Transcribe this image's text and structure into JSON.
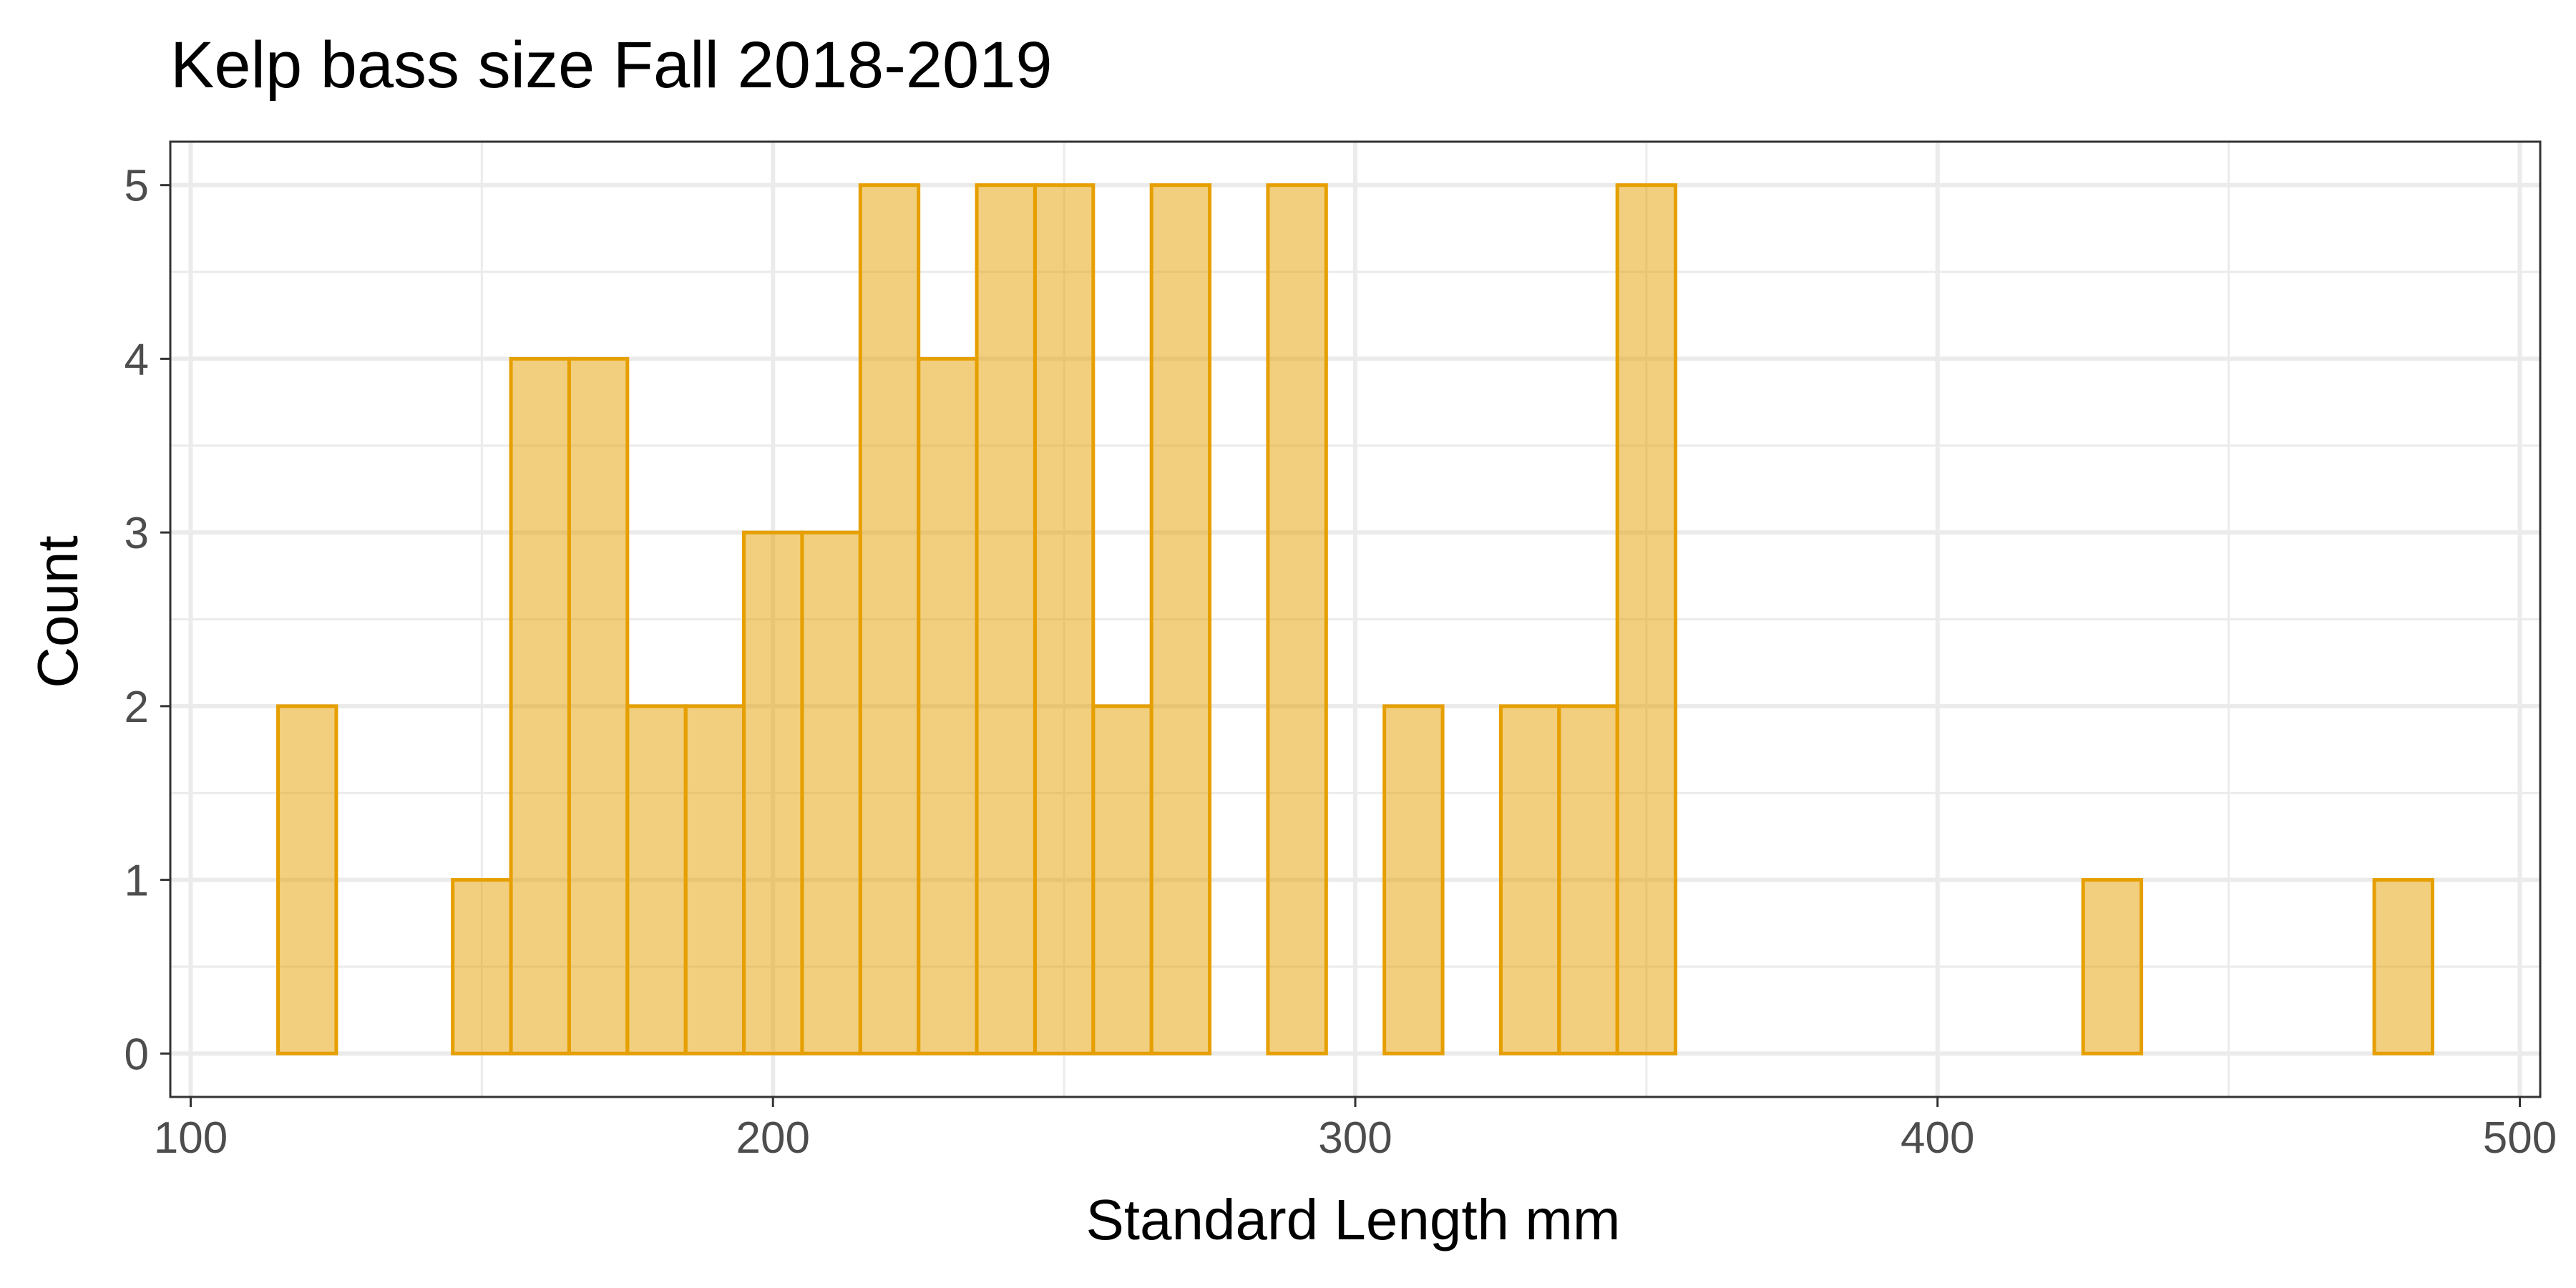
{
  "chart_data": {
    "type": "bar",
    "subtype": "histogram",
    "title": "Kelp bass size Fall 2018-2019",
    "xlabel": "Standard Length mm",
    "ylabel": "Count",
    "binwidth": 10,
    "bins": [
      {
        "x0": 115,
        "x1": 125,
        "count": 2
      },
      {
        "x0": 125,
        "x1": 135,
        "count": 0
      },
      {
        "x0": 135,
        "x1": 145,
        "count": 0
      },
      {
        "x0": 145,
        "x1": 155,
        "count": 1
      },
      {
        "x0": 155,
        "x1": 165,
        "count": 4
      },
      {
        "x0": 165,
        "x1": 175,
        "count": 4
      },
      {
        "x0": 175,
        "x1": 185,
        "count": 2
      },
      {
        "x0": 185,
        "x1": 195,
        "count": 2
      },
      {
        "x0": 195,
        "x1": 205,
        "count": 3
      },
      {
        "x0": 205,
        "x1": 215,
        "count": 3
      },
      {
        "x0": 215,
        "x1": 225,
        "count": 5
      },
      {
        "x0": 225,
        "x1": 235,
        "count": 4
      },
      {
        "x0": 235,
        "x1": 245,
        "count": 5
      },
      {
        "x0": 245,
        "x1": 255,
        "count": 5
      },
      {
        "x0": 255,
        "x1": 265,
        "count": 2
      },
      {
        "x0": 265,
        "x1": 275,
        "count": 5
      },
      {
        "x0": 275,
        "x1": 285,
        "count": 0
      },
      {
        "x0": 285,
        "x1": 295,
        "count": 5
      },
      {
        "x0": 295,
        "x1": 305,
        "count": 0
      },
      {
        "x0": 305,
        "x1": 315,
        "count": 2
      },
      {
        "x0": 315,
        "x1": 325,
        "count": 0
      },
      {
        "x0": 325,
        "x1": 335,
        "count": 2
      },
      {
        "x0": 335,
        "x1": 345,
        "count": 2
      },
      {
        "x0": 345,
        "x1": 355,
        "count": 5
      },
      {
        "x0": 355,
        "x1": 365,
        "count": 0
      },
      {
        "x0": 365,
        "x1": 375,
        "count": 0
      },
      {
        "x0": 375,
        "x1": 385,
        "count": 0
      },
      {
        "x0": 385,
        "x1": 395,
        "count": 0
      },
      {
        "x0": 395,
        "x1": 405,
        "count": 0
      },
      {
        "x0": 405,
        "x1": 415,
        "count": 0
      },
      {
        "x0": 415,
        "x1": 425,
        "count": 0
      },
      {
        "x0": 425,
        "x1": 435,
        "count": 1
      },
      {
        "x0": 435,
        "x1": 445,
        "count": 0
      },
      {
        "x0": 445,
        "x1": 455,
        "count": 0
      },
      {
        "x0": 455,
        "x1": 465,
        "count": 0
      },
      {
        "x0": 465,
        "x1": 475,
        "count": 0
      },
      {
        "x0": 475,
        "x1": 485,
        "count": 1
      }
    ],
    "xlim": [
      96.5,
      503.5
    ],
    "ylim": [
      -0.25,
      5.25
    ],
    "x_ticks": [
      100,
      200,
      300,
      400,
      500
    ],
    "y_ticks": [
      0,
      1,
      2,
      3,
      4,
      5
    ],
    "grid": true,
    "legend": "none",
    "colors": {
      "bar_fill": "#E69F00",
      "bar_fill_opacity": 0.5,
      "bar_outline": "#E69F00",
      "panel_background": "#ffffff",
      "grid": "#ebebeb",
      "border": "#333333"
    }
  }
}
